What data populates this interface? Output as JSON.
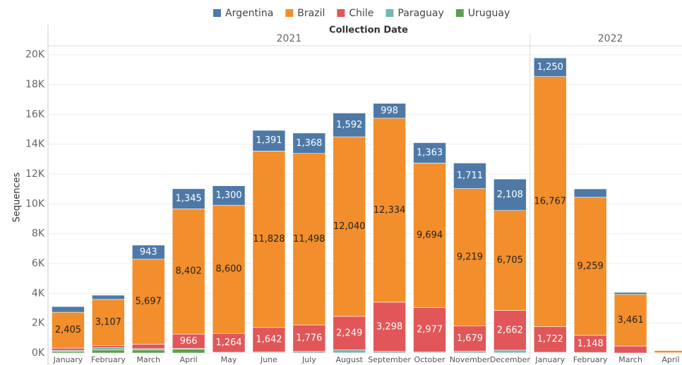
{
  "chart_data": {
    "type": "stacked-bar",
    "x_axis_title": "Collection Date",
    "y_axis_title": "Sequences",
    "year_groups": [
      {
        "label": "2021",
        "span": 12
      },
      {
        "label": "2022",
        "span": 4
      }
    ],
    "categories": [
      "January",
      "February",
      "March",
      "April",
      "May",
      "June",
      "July",
      "August",
      "September",
      "October",
      "November",
      "December",
      "January",
      "February",
      "March",
      "April"
    ],
    "ylim": [
      0,
      20600
    ],
    "yticks": [
      {
        "value": 0,
        "label": "0K"
      },
      {
        "value": 2000,
        "label": "2K"
      },
      {
        "value": 4000,
        "label": "4K"
      },
      {
        "value": 6000,
        "label": "6K"
      },
      {
        "value": 8000,
        "label": "8K"
      },
      {
        "value": 10000,
        "label": "10K"
      },
      {
        "value": 12000,
        "label": "12K"
      },
      {
        "value": 14000,
        "label": "14K"
      },
      {
        "value": 16000,
        "label": "16K"
      },
      {
        "value": 18000,
        "label": "18K"
      },
      {
        "value": 20000,
        "label": "20K"
      }
    ],
    "grid": true,
    "legend": [
      "Argentina",
      "Brazil",
      "Chile",
      "Paraguay",
      "Uruguay"
    ],
    "series": [
      {
        "name": "Uruguay",
        "color": "#59a14f",
        "label_color": "#ffffff",
        "values": [
          100,
          200,
          200,
          250,
          10,
          10,
          10,
          10,
          10,
          10,
          10,
          10,
          10,
          0,
          0,
          0
        ],
        "value_labels": [
          null,
          null,
          null,
          null,
          null,
          null,
          null,
          null,
          null,
          null,
          null,
          null,
          null,
          null,
          null,
          null
        ]
      },
      {
        "name": "Paraguay",
        "color": "#76b7b2",
        "label_color": "#ffffff",
        "values": [
          80,
          150,
          94,
          54,
          40,
          60,
          100,
          200,
          100,
          60,
          120,
          180,
          40,
          40,
          0,
          0
        ],
        "value_labels": [
          null,
          null,
          null,
          null,
          null,
          null,
          null,
          null,
          null,
          null,
          null,
          null,
          null,
          null,
          null,
          null
        ]
      },
      {
        "name": "Chile",
        "color": "#e15759",
        "label_color": "#ffffff",
        "values": [
          150,
          140,
          300,
          966,
          1264,
          1642,
          1776,
          2249,
          3298,
          2977,
          1679,
          2662,
          1722,
          1148,
          470,
          20
        ],
        "value_labels": [
          null,
          null,
          null,
          "966",
          "1,264",
          "1,642",
          "1,776",
          "2,249",
          "3,298",
          "2,977",
          "1,679",
          "2,662",
          "1,722",
          "1,148",
          null,
          null
        ]
      },
      {
        "name": "Brazil",
        "color": "#f28e2b",
        "label_color": "#222222",
        "values": [
          2405,
          3107,
          5697,
          8402,
          8600,
          11828,
          11498,
          12040,
          12334,
          9694,
          9219,
          6705,
          16767,
          9259,
          3461,
          150
        ],
        "value_labels": [
          "2,405",
          "3,107",
          "5,697",
          "8,402",
          "8,600",
          "11,828",
          "11,498",
          "12,040",
          "12,334",
          "9,694",
          "9,219",
          "6,705",
          "16,767",
          "9,259",
          "3,461",
          null
        ]
      },
      {
        "name": "Argentina",
        "color": "#4e79a7",
        "label_color": "#ffffff",
        "values": [
          380,
          280,
          943,
          1345,
          1300,
          1391,
          1368,
          1592,
          998,
          1363,
          1711,
          2108,
          1250,
          560,
          135,
          20
        ],
        "value_labels": [
          null,
          null,
          "943",
          "1,345",
          "1,300",
          "1,391",
          "1,368",
          "1,592",
          "998",
          "1,363",
          "1,711",
          "2,108",
          "1,250",
          null,
          null,
          null
        ]
      }
    ]
  }
}
